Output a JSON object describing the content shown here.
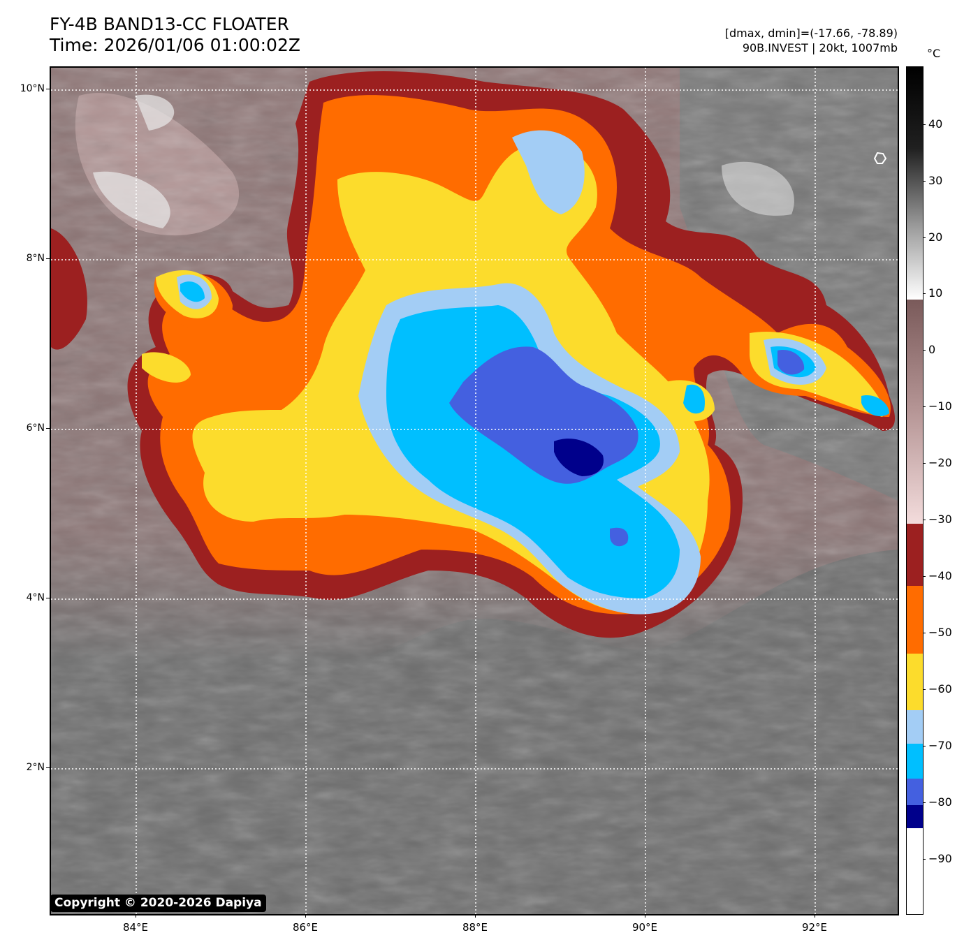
{
  "header": {
    "title_line1": "FY-4B BAND13-CC FLOATER",
    "title_line2": "Time: 2026/01/06 01:00:02Z",
    "range_text": "[dmax, dmin]=(-17.66, -78.89)",
    "storm_text": "90B.INVEST | 20kt, 1007mb"
  },
  "map": {
    "lat_labels": [
      "10°N",
      "8°N",
      "6°N",
      "4°N",
      "2°N"
    ],
    "lon_labels": [
      "84°E",
      "86°E",
      "88°E",
      "90°E",
      "92°E"
    ],
    "storm_marker_icon": "storm-center-icon",
    "gridlines": true
  },
  "colorbar": {
    "unit": "°C",
    "tick_labels": [
      "40",
      "30",
      "20",
      "10",
      "0",
      "−10",
      "−20",
      "−30",
      "−40",
      "−50",
      "−60",
      "−70",
      "−80",
      "−90"
    ],
    "colors": {
      "grey_top": "#000000",
      "grey_bottom": "#ffffff",
      "pink_top": "#7a5a5a",
      "pink_bottom": "#f3dcdc",
      "dark_red": "#9c2020",
      "orange": "#ff6c00",
      "yellow": "#fcdc2c",
      "light_blue": "#a3cdf5",
      "cyan": "#00bfff",
      "royal_blue": "#4460e0",
      "navy": "#00008b",
      "white_tail": "#ffffff"
    }
  },
  "copyright": "Copyright © 2020-2026 Dapiya"
}
